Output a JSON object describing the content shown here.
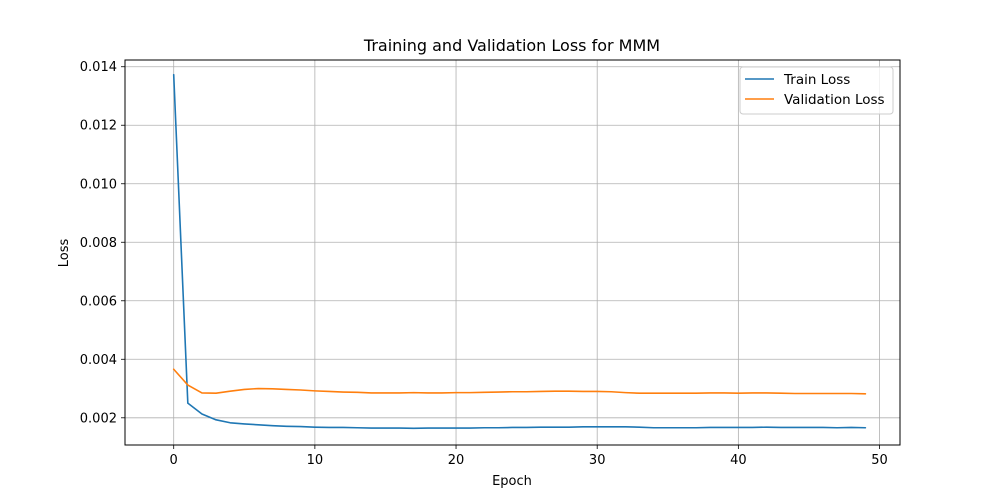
{
  "chart_data": {
    "type": "line",
    "title": "Training and Validation Loss for MMM",
    "xlabel": "Epoch",
    "ylabel": "Loss",
    "xlim": [
      -3.45,
      51.45
    ],
    "ylim": [
      0.00107,
      0.01423
    ],
    "xticks": [
      0,
      10,
      20,
      30,
      40,
      50
    ],
    "xtick_labels": [
      "0",
      "10",
      "20",
      "30",
      "40",
      "50"
    ],
    "yticks": [
      0.002,
      0.004,
      0.006,
      0.008,
      0.01,
      0.012,
      0.014
    ],
    "ytick_labels": [
      "0.002",
      "0.004",
      "0.006",
      "0.008",
      "0.010",
      "0.012",
      "0.014"
    ],
    "grid": true,
    "legend_position": "top-right",
    "x": [
      0,
      1,
      2,
      3,
      4,
      5,
      6,
      7,
      8,
      9,
      10,
      11,
      12,
      13,
      14,
      15,
      16,
      17,
      18,
      19,
      20,
      21,
      22,
      23,
      24,
      25,
      26,
      27,
      28,
      29,
      30,
      31,
      32,
      33,
      34,
      35,
      36,
      37,
      38,
      39,
      40,
      41,
      42,
      43,
      44,
      45,
      46,
      47,
      48,
      49
    ],
    "series": [
      {
        "name": "Train Loss",
        "color": "#1f77b4",
        "values": [
          0.01373,
          0.0025,
          0.00213,
          0.00193,
          0.00183,
          0.00179,
          0.00176,
          0.00173,
          0.00171,
          0.0017,
          0.00168,
          0.00167,
          0.00167,
          0.00166,
          0.00165,
          0.00165,
          0.00165,
          0.00164,
          0.00165,
          0.00165,
          0.00165,
          0.00165,
          0.00166,
          0.00166,
          0.00167,
          0.00167,
          0.00168,
          0.00168,
          0.00168,
          0.00169,
          0.00169,
          0.00169,
          0.00169,
          0.00168,
          0.00166,
          0.00166,
          0.00166,
          0.00166,
          0.00167,
          0.00167,
          0.00167,
          0.00167,
          0.00168,
          0.00167,
          0.00167,
          0.00167,
          0.00167,
          0.00166,
          0.00167,
          0.00166
        ]
      },
      {
        "name": "Validation Loss",
        "color": "#ff7f0e",
        "values": [
          0.00366,
          0.00312,
          0.00285,
          0.00284,
          0.00291,
          0.00297,
          0.003,
          0.00299,
          0.00297,
          0.00295,
          0.00292,
          0.0029,
          0.00288,
          0.00287,
          0.00285,
          0.00285,
          0.00285,
          0.00286,
          0.00285,
          0.00285,
          0.00286,
          0.00286,
          0.00287,
          0.00288,
          0.00289,
          0.00289,
          0.0029,
          0.00291,
          0.00291,
          0.0029,
          0.0029,
          0.00289,
          0.00286,
          0.00284,
          0.00284,
          0.00284,
          0.00284,
          0.00284,
          0.00285,
          0.00285,
          0.00284,
          0.00285,
          0.00285,
          0.00284,
          0.00283,
          0.00283,
          0.00283,
          0.00283,
          0.00283,
          0.00282
        ]
      }
    ]
  }
}
